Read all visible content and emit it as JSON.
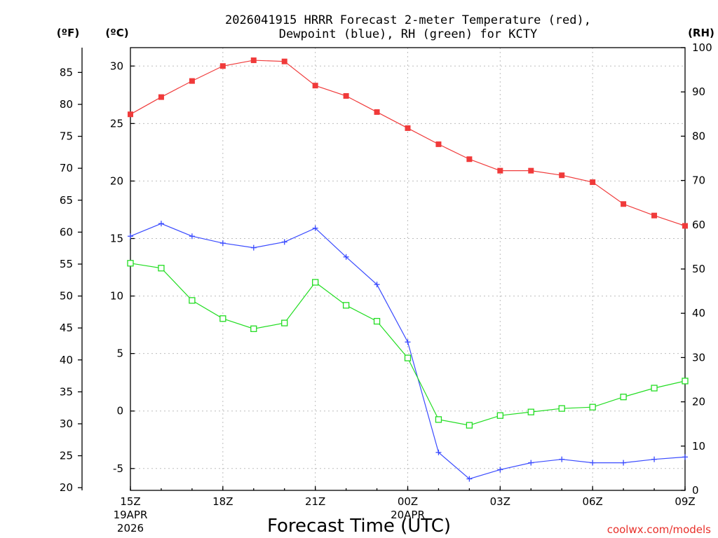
{
  "chart_data": {
    "type": "line",
    "title_line1": "2026041915 HRRR Forecast 2-meter Temperature (red),",
    "title_line2": "Dewpoint (blue), RH (green) for KCTY",
    "unit_left_f": "(ºF)",
    "unit_left_c": "(ºC)",
    "unit_right": "(RH)",
    "xlabel": "Forecast Time (UTC)",
    "credit": "coolwx.com/models",
    "x_hours": [
      0,
      1,
      2,
      3,
      4,
      5,
      6,
      7,
      8,
      9,
      10,
      11,
      12,
      13,
      14,
      15,
      16,
      17,
      18
    ],
    "x_ticks": [
      {
        "hour": 0,
        "label": "15Z",
        "date1": "19APR",
        "date2": "2026"
      },
      {
        "hour": 3,
        "label": "18Z",
        "date1": "",
        "date2": ""
      },
      {
        "hour": 6,
        "label": "21Z",
        "date1": "",
        "date2": ""
      },
      {
        "hour": 9,
        "label": "00Z",
        "date1": "20APR",
        "date2": ""
      },
      {
        "hour": 12,
        "label": "03Z",
        "date1": "",
        "date2": ""
      },
      {
        "hour": 15,
        "label": "06Z",
        "date1": "",
        "date2": ""
      },
      {
        "hour": 18,
        "label": "09Z",
        "date1": "",
        "date2": ""
      }
    ],
    "celsius_axis": {
      "range": [
        -6.9,
        31.6
      ],
      "ticks": [
        -5,
        0,
        5,
        10,
        15,
        20,
        25,
        30
      ]
    },
    "fahrenheit_ticks": [
      20,
      25,
      30,
      35,
      40,
      45,
      50,
      55,
      60,
      65,
      70,
      75,
      80,
      85
    ],
    "rh_axis": {
      "range": [
        0,
        100
      ],
      "ticks": [
        0,
        10,
        20,
        30,
        40,
        50,
        60,
        70,
        80,
        90,
        100
      ]
    },
    "series": [
      {
        "name": "Temperature",
        "axis": "C",
        "color": "#f03a3a",
        "marker": "square-filled",
        "values": [
          25.8,
          27.3,
          28.7,
          30.0,
          30.5,
          30.4,
          28.3,
          27.4,
          26.0,
          24.6,
          23.2,
          21.9,
          20.9,
          20.9,
          20.5,
          19.9,
          18.0,
          17.0,
          16.1
        ]
      },
      {
        "name": "Dewpoint",
        "axis": "C",
        "color": "#3a4bff",
        "marker": "plus",
        "values": [
          15.2,
          16.3,
          15.2,
          14.6,
          14.2,
          14.7,
          15.9,
          13.4,
          11.0,
          6.0,
          -3.6,
          -5.9,
          -5.1,
          -4.5,
          -4.2,
          -4.5,
          -4.5,
          -4.2,
          -4.0
        ]
      },
      {
        "name": "RH",
        "axis": "RH",
        "color": "#22dd22",
        "marker": "square-open",
        "values": [
          51.3,
          50.2,
          42.9,
          38.8,
          36.5,
          37.8,
          47.0,
          41.8,
          38.2,
          29.9,
          16.0,
          14.7,
          16.9,
          17.7,
          18.5,
          18.8,
          21.1,
          23.1,
          24.7
        ]
      }
    ]
  }
}
